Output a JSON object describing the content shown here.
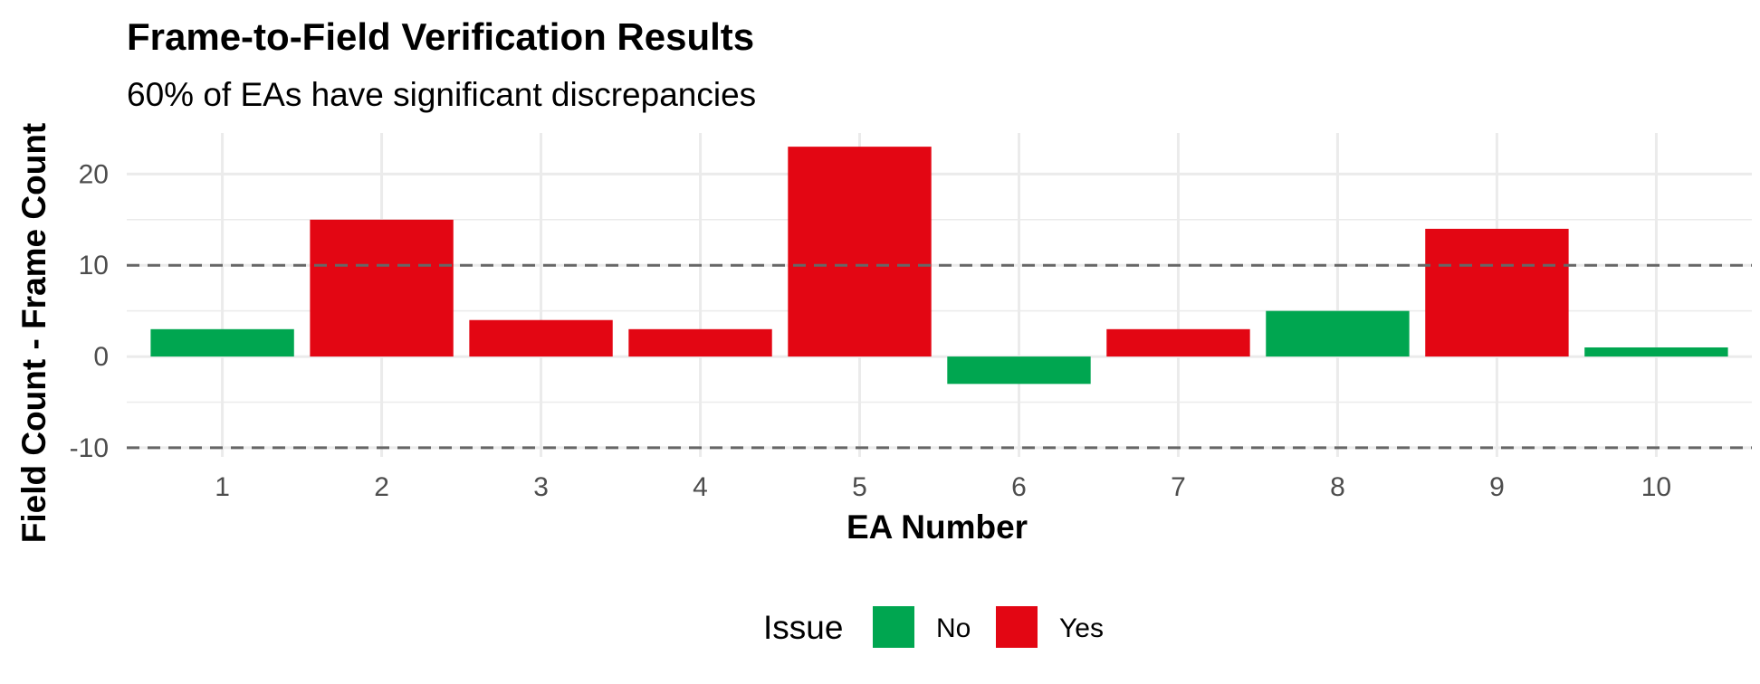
{
  "chart_data": {
    "type": "bar",
    "title": "Frame-to-Field Verification Results",
    "subtitle": "60% of EAs have significant discrepancies",
    "xlabel": "EA Number",
    "ylabel": "Field Count - Frame Count",
    "categories": [
      "1",
      "2",
      "3",
      "4",
      "5",
      "6",
      "7",
      "8",
      "9",
      "10"
    ],
    "values": [
      3,
      15,
      4,
      3,
      23,
      -3,
      3,
      5,
      14,
      1
    ],
    "issue": [
      "No",
      "Yes",
      "Yes",
      "Yes",
      "Yes",
      "No",
      "Yes",
      "No",
      "Yes",
      "No"
    ],
    "ylim": [
      -11,
      24.5
    ],
    "yticks": [
      -10,
      0,
      10,
      20
    ],
    "ytick_labels": [
      "-10",
      "0",
      "10",
      "20"
    ],
    "reference_lines": [
      10,
      -10
    ],
    "grid": true,
    "legend": {
      "title": "Issue",
      "position": "bottom",
      "entries": [
        {
          "label": "No",
          "color": "#00a650"
        },
        {
          "label": "Yes",
          "color": "#e30613"
        }
      ]
    },
    "colors": {
      "No": "#00a650",
      "Yes": "#e30613",
      "reference_line": "#666666",
      "grid": "#ebebeb"
    }
  }
}
